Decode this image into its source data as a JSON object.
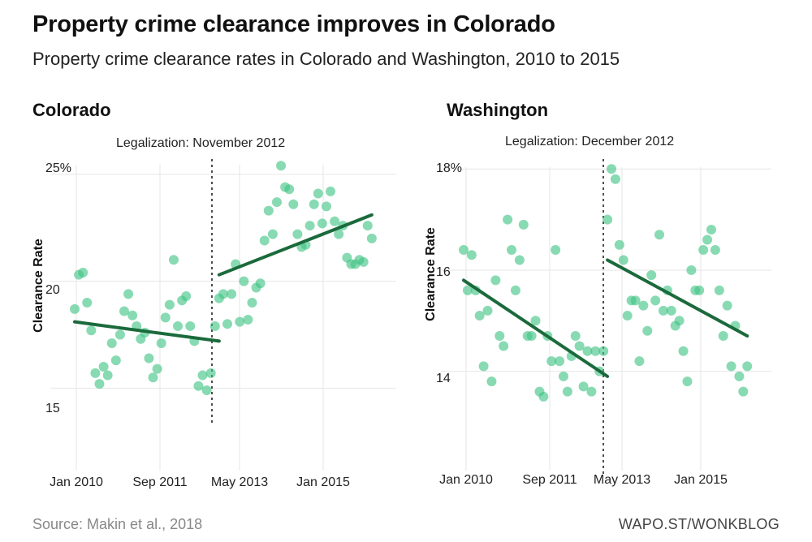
{
  "header": {
    "title": "Property crime clearance improves in Colorado",
    "subtitle": "Property crime clearance rates in Colorado and Washington, 2010 to 2015"
  },
  "footer": {
    "source": "Source: Makin et al., 2018",
    "credit": "WAPO.ST/WONKBLOG"
  },
  "colors": {
    "point": "#3fc484",
    "trend": "#1b6a3c",
    "grid": "#e6e6e6"
  },
  "chart_data": [
    {
      "type": "scatter",
      "title": "Colorado",
      "annotation": "Legalization: November 2012",
      "ylabel": "Clearance Rate",
      "xlabel": "",
      "y_ticks": [
        "15",
        "20",
        "25%"
      ],
      "y_tick_values": [
        15,
        20,
        25
      ],
      "x_ticks": [
        "Jan 2010",
        "Sep 2011",
        "May 2013",
        "Jan 2015"
      ],
      "x_tick_values": [
        0,
        20,
        40,
        60
      ],
      "x_unit": "months since Jan 2010",
      "xlim": [
        0,
        74
      ],
      "ylim": [
        13.8,
        25.6
      ],
      "grid": true,
      "legalization_x": 35,
      "points": [
        [
          0,
          18.7
        ],
        [
          1,
          20.3
        ],
        [
          2,
          20.4
        ],
        [
          3,
          19.0
        ],
        [
          4,
          17.7
        ],
        [
          5,
          15.7
        ],
        [
          6,
          15.2
        ],
        [
          7,
          16.0
        ],
        [
          8,
          15.6
        ],
        [
          9,
          17.1
        ],
        [
          10,
          16.3
        ],
        [
          11,
          17.5
        ],
        [
          12,
          18.6
        ],
        [
          13,
          19.4
        ],
        [
          14,
          18.4
        ],
        [
          15,
          17.9
        ],
        [
          16,
          17.3
        ],
        [
          17,
          17.6
        ],
        [
          18,
          16.4
        ],
        [
          19,
          15.5
        ],
        [
          20,
          15.9
        ],
        [
          21,
          17.1
        ],
        [
          22,
          18.3
        ],
        [
          23,
          18.9
        ],
        [
          24,
          21.0
        ],
        [
          25,
          17.9
        ],
        [
          26,
          19.1
        ],
        [
          27,
          19.3
        ],
        [
          28,
          17.9
        ],
        [
          29,
          17.2
        ],
        [
          30,
          15.1
        ],
        [
          31,
          15.6
        ],
        [
          32,
          14.9
        ],
        [
          33,
          15.7
        ],
        [
          34,
          17.9
        ],
        [
          35,
          19.2
        ],
        [
          36,
          19.4
        ],
        [
          37,
          18.0
        ],
        [
          38,
          19.4
        ],
        [
          39,
          20.8
        ],
        [
          40,
          18.1
        ],
        [
          41,
          20.0
        ],
        [
          42,
          18.2
        ],
        [
          43,
          19.0
        ],
        [
          44,
          19.7
        ],
        [
          45,
          19.9
        ],
        [
          46,
          21.9
        ],
        [
          47,
          23.3
        ],
        [
          48,
          22.2
        ],
        [
          49,
          23.7
        ],
        [
          50,
          25.4
        ],
        [
          51,
          24.4
        ],
        [
          52,
          24.3
        ],
        [
          53,
          23.6
        ],
        [
          54,
          22.2
        ],
        [
          55,
          21.6
        ],
        [
          56,
          21.7
        ],
        [
          57,
          22.6
        ],
        [
          58,
          23.6
        ],
        [
          59,
          24.1
        ],
        [
          60,
          22.7
        ],
        [
          61,
          23.5
        ],
        [
          62,
          24.2
        ],
        [
          63,
          22.8
        ],
        [
          64,
          22.2
        ],
        [
          65,
          22.6
        ],
        [
          66,
          21.1
        ],
        [
          67,
          20.8
        ],
        [
          68,
          20.8
        ],
        [
          69,
          21.0
        ],
        [
          70,
          20.9
        ],
        [
          71,
          22.6
        ],
        [
          72,
          22.0
        ]
      ],
      "trend_pre": [
        [
          0,
          18.1
        ],
        [
          35,
          17.2
        ]
      ],
      "trend_post": [
        [
          35,
          20.3
        ],
        [
          72,
          23.1
        ]
      ]
    },
    {
      "type": "scatter",
      "title": "Washington",
      "annotation": "Legalization: December 2012",
      "ylabel": "Clearance Rate",
      "xlabel": "",
      "y_ticks": [
        "14",
        "16",
        "18%"
      ],
      "y_tick_values": [
        14,
        16,
        18
      ],
      "x_ticks": [
        "Jan 2010",
        "Sep 2011",
        "May 2013",
        "Jan 2015"
      ],
      "x_tick_values": [
        0,
        20,
        40,
        60
      ],
      "x_unit": "months since Jan 2010",
      "xlim": [
        0,
        74
      ],
      "ylim": [
        13.0,
        18.1
      ],
      "grid": true,
      "legalization_x": 36,
      "points": [
        [
          0,
          16.4
        ],
        [
          1,
          15.6
        ],
        [
          2,
          16.3
        ],
        [
          3,
          15.6
        ],
        [
          4,
          15.1
        ],
        [
          5,
          14.1
        ],
        [
          6,
          15.2
        ],
        [
          7,
          13.8
        ],
        [
          8,
          15.8
        ],
        [
          9,
          14.7
        ],
        [
          10,
          14.5
        ],
        [
          11,
          17.0
        ],
        [
          12,
          16.4
        ],
        [
          13,
          15.6
        ],
        [
          14,
          16.2
        ],
        [
          15,
          16.9
        ],
        [
          16,
          14.7
        ],
        [
          17,
          14.7
        ],
        [
          18,
          15.0
        ],
        [
          19,
          13.6
        ],
        [
          20,
          13.5
        ],
        [
          21,
          14.7
        ],
        [
          22,
          14.2
        ],
        [
          23,
          16.4
        ],
        [
          24,
          14.2
        ],
        [
          25,
          13.9
        ],
        [
          26,
          13.6
        ],
        [
          27,
          14.3
        ],
        [
          28,
          14.7
        ],
        [
          29,
          14.5
        ],
        [
          30,
          13.7
        ],
        [
          31,
          14.4
        ],
        [
          32,
          13.6
        ],
        [
          33,
          14.4
        ],
        [
          34,
          14.0
        ],
        [
          35,
          14.4
        ],
        [
          36,
          17.0
        ],
        [
          37,
          18.0
        ],
        [
          38,
          17.8
        ],
        [
          39,
          16.5
        ],
        [
          40,
          16.2
        ],
        [
          41,
          15.1
        ],
        [
          42,
          15.4
        ],
        [
          43,
          15.4
        ],
        [
          44,
          14.2
        ],
        [
          45,
          15.3
        ],
        [
          46,
          14.8
        ],
        [
          47,
          15.9
        ],
        [
          48,
          15.4
        ],
        [
          49,
          16.7
        ],
        [
          50,
          15.2
        ],
        [
          51,
          15.6
        ],
        [
          52,
          15.2
        ],
        [
          53,
          14.9
        ],
        [
          54,
          15.0
        ],
        [
          55,
          14.4
        ],
        [
          56,
          13.8
        ],
        [
          57,
          16.0
        ],
        [
          58,
          15.6
        ],
        [
          59,
          15.6
        ],
        [
          60,
          16.4
        ],
        [
          61,
          16.6
        ],
        [
          62,
          16.8
        ],
        [
          63,
          16.4
        ],
        [
          64,
          15.6
        ],
        [
          65,
          14.7
        ],
        [
          66,
          15.3
        ],
        [
          67,
          14.1
        ],
        [
          68,
          14.9
        ],
        [
          69,
          13.9
        ],
        [
          70,
          13.6
        ],
        [
          71,
          14.1
        ]
      ],
      "trend_pre": [
        [
          0,
          15.8
        ],
        [
          36,
          13.9
        ]
      ],
      "trend_post": [
        [
          36,
          16.2
        ],
        [
          71,
          14.7
        ]
      ]
    }
  ]
}
